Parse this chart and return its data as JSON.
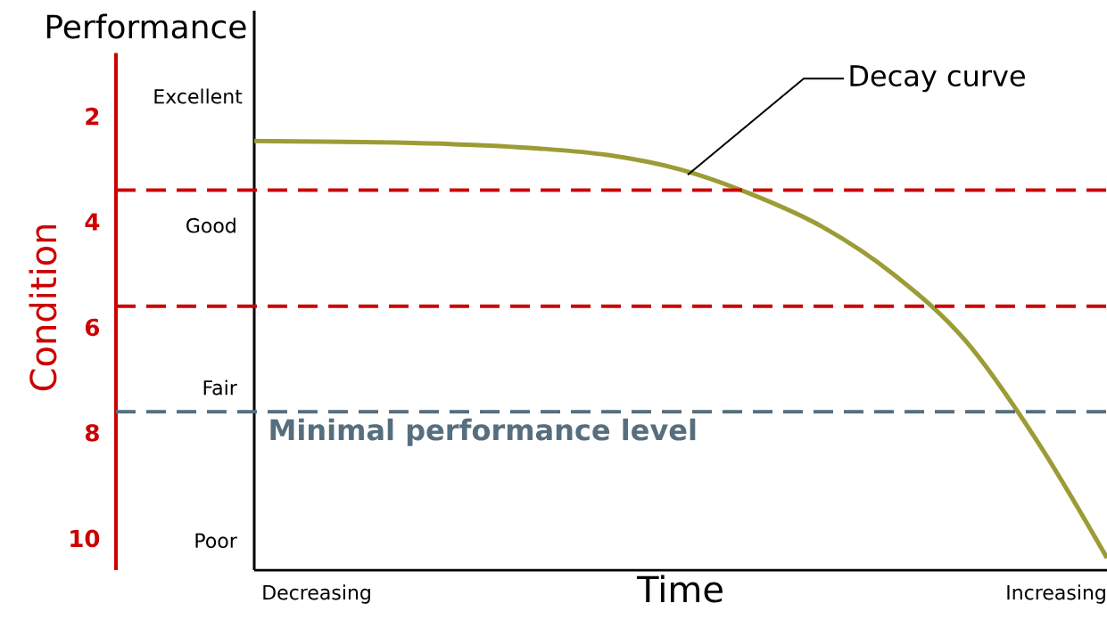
{
  "chart_data": {
    "type": "line",
    "ylabel": "Condition",
    "y2label": "Performance",
    "xlabel": "Time",
    "categories": [
      null,
      null,
      null,
      null,
      null,
      null,
      null,
      null,
      null,
      null,
      null,
      null,
      null
    ],
    "series": [
      {
        "name": "Decay curve",
        "color": "#9c9c36",
        "values": [
          2.47,
          2.48,
          2.5,
          2.54,
          2.61,
          2.74,
          3.01,
          3.48,
          4.1,
          5.0,
          6.24,
          8.12,
          10.37
        ]
      }
    ],
    "ylim": [
      10.6,
      0.8
    ],
    "yticks": [
      2,
      4,
      6,
      8,
      10
    ],
    "ref_lines": [
      {
        "axis": "y",
        "value": 3.4,
        "color": "#cc0000",
        "line_style": "dashed"
      },
      {
        "axis": "y",
        "value": 5.6,
        "color": "#cc0000",
        "line_style": "dashed"
      },
      {
        "axis": "y",
        "value": 7.6,
        "color": "#566e7e",
        "line_style": "dashed",
        "label": "Minimal performance level"
      }
    ],
    "annotations": [
      "Excellent",
      "Good",
      "Fair",
      "Poor",
      "Decreasing",
      "Increasing"
    ],
    "legend": false,
    "marker": "none",
    "line_style": "solid"
  }
}
